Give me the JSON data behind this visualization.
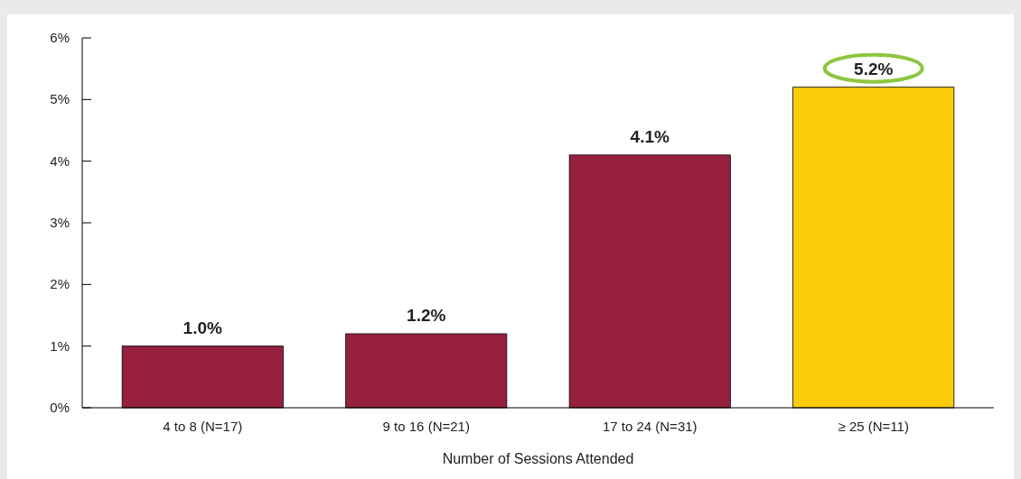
{
  "chart_data": {
    "type": "bar",
    "xlabel": "Number of Sessions Attended",
    "categories": [
      "4 to 8 (N=17)",
      "9 to 16 (N=21)",
      "17 to 24 (N=31)",
      "≥ 25 (N=11)"
    ],
    "values": [
      1.0,
      1.2,
      4.1,
      5.2
    ],
    "colors": [
      "#97203f",
      "#97203f",
      "#97203f",
      "#fccc0a"
    ],
    "value_labels": [
      "1.0%",
      "1.2%",
      "4.1%",
      "5.2%"
    ],
    "ylim": [
      0,
      6
    ],
    "yticks": [
      {
        "value": 0,
        "label": "0%"
      },
      {
        "value": 1,
        "label": "1%"
      },
      {
        "value": 2,
        "label": "2%"
      },
      {
        "value": 3,
        "label": "3%"
      },
      {
        "value": 4,
        "label": "4%"
      },
      {
        "value": 5,
        "label": "5%"
      },
      {
        "value": 6,
        "label": "6%"
      }
    ],
    "grid": false
  }
}
